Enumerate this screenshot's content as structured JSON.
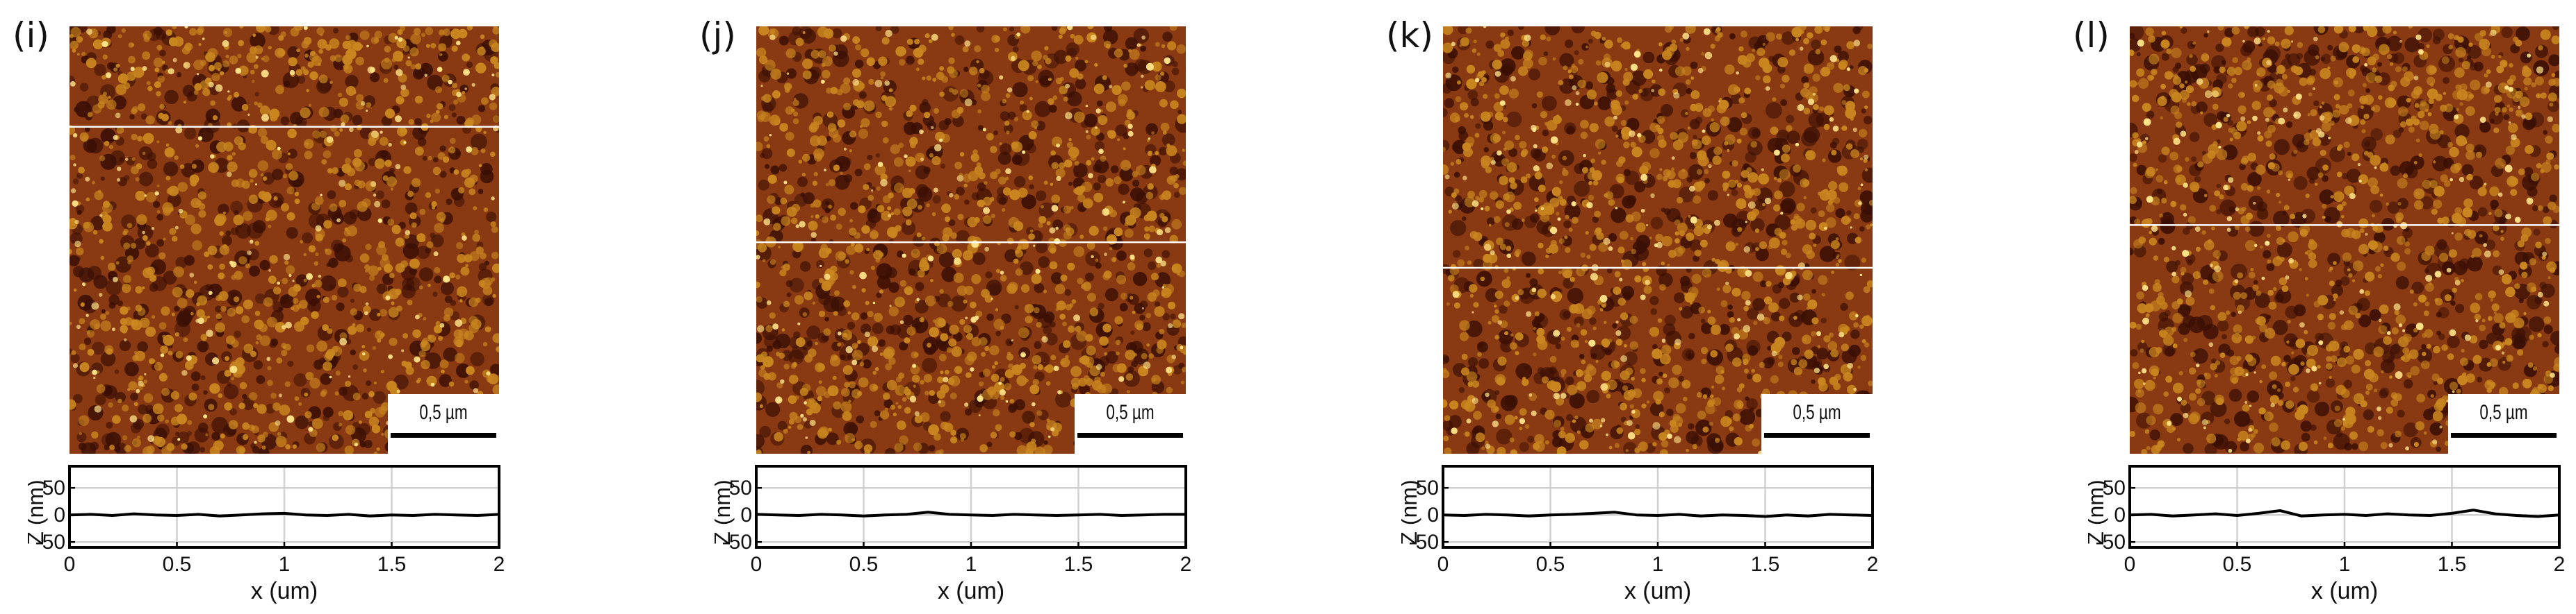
{
  "panels": [
    {
      "label": "(i)",
      "scale_bar": "0,5 µm",
      "cut_line_fraction": 0.235,
      "seed": 11
    },
    {
      "label": "(j)",
      "scale_bar": "0,5 µm",
      "cut_line_fraction": 0.505,
      "seed": 23
    },
    {
      "label": "(k)",
      "scale_bar": "0,5 µm",
      "cut_line_fraction": 0.565,
      "seed": 37
    },
    {
      "label": "(l)",
      "scale_bar": "0,5 µm",
      "cut_line_fraction": 0.465,
      "seed": 51
    }
  ],
  "colors": {
    "afm_dark": "#3a0f05",
    "afm_mid": "#8a3a12",
    "afm_light": "#c9861f",
    "afm_bright": "#ffe58a",
    "profile_line": "#000000",
    "grid": "#d0d0d0"
  },
  "chart_data": [
    {
      "type": "line",
      "title": "(i)",
      "xlabel": "x (um)",
      "ylabel": "Z (nm)",
      "xlim": [
        0,
        2
      ],
      "ylim": [
        -60,
        90
      ],
      "xticks": [
        0,
        0.5,
        1,
        1.5,
        2
      ],
      "xtick_labels": [
        "0",
        "0.5",
        "1",
        "1.5",
        "2"
      ],
      "yticks": [
        -50,
        0,
        50
      ],
      "ytick_labels": [
        "-50",
        "0",
        "50"
      ],
      "grid": true,
      "series": [
        {
          "name": "Z",
          "x": [
            0,
            0.1,
            0.2,
            0.3,
            0.4,
            0.5,
            0.6,
            0.7,
            0.8,
            0.9,
            1.0,
            1.1,
            1.2,
            1.3,
            1.4,
            1.5,
            1.6,
            1.7,
            1.8,
            1.9,
            2.0
          ],
          "y": [
            0,
            1,
            -1,
            2,
            0,
            -1,
            1,
            -2,
            0,
            2,
            3,
            0,
            -1,
            1,
            -2,
            0,
            -1,
            1,
            0,
            -1,
            1
          ]
        }
      ]
    },
    {
      "type": "line",
      "title": "(j)",
      "xlabel": "x (um)",
      "ylabel": "Z (nm)",
      "xlim": [
        0,
        2
      ],
      "ylim": [
        -60,
        90
      ],
      "xticks": [
        0,
        0.5,
        1,
        1.5,
        2
      ],
      "xtick_labels": [
        "0",
        "0.5",
        "1",
        "1.5",
        "2"
      ],
      "yticks": [
        -50,
        0,
        50
      ],
      "ytick_labels": [
        "-50",
        "0",
        "50"
      ],
      "grid": true,
      "series": [
        {
          "name": "Z",
          "x": [
            0,
            0.1,
            0.2,
            0.3,
            0.4,
            0.5,
            0.6,
            0.7,
            0.8,
            0.9,
            1.0,
            1.1,
            1.2,
            1.3,
            1.4,
            1.5,
            1.6,
            1.7,
            1.8,
            1.9,
            2.0
          ],
          "y": [
            1,
            0,
            -1,
            1,
            0,
            -2,
            0,
            1,
            5,
            1,
            0,
            -1,
            1,
            0,
            -1,
            0,
            1,
            -1,
            0,
            1,
            1
          ]
        }
      ]
    },
    {
      "type": "line",
      "title": "(k)",
      "xlabel": "x (um)",
      "ylabel": "Z (nm)",
      "xlim": [
        0,
        2
      ],
      "ylim": [
        -60,
        90
      ],
      "xticks": [
        0,
        0.5,
        1,
        1.5,
        2
      ],
      "xtick_labels": [
        "0",
        "0.5",
        "1",
        "1.5",
        "2"
      ],
      "yticks": [
        -50,
        0,
        50
      ],
      "ytick_labels": [
        "-50",
        "0",
        "50"
      ],
      "grid": true,
      "series": [
        {
          "name": "Z",
          "x": [
            0,
            0.1,
            0.2,
            0.3,
            0.4,
            0.5,
            0.6,
            0.7,
            0.8,
            0.9,
            1.0,
            1.1,
            1.2,
            1.3,
            1.4,
            1.5,
            1.6,
            1.7,
            1.8,
            1.9,
            2.0
          ],
          "y": [
            0,
            -1,
            1,
            0,
            -2,
            0,
            1,
            3,
            5,
            0,
            -1,
            1,
            -2,
            0,
            -1,
            -3,
            0,
            -2,
            1,
            0,
            -1
          ]
        }
      ]
    },
    {
      "type": "line",
      "title": "(l)",
      "xlabel": "x (um)",
      "ylabel": "Z (nm)",
      "xlim": [
        0,
        2
      ],
      "ylim": [
        -60,
        90
      ],
      "xticks": [
        0,
        0.5,
        1,
        1.5,
        2
      ],
      "xtick_labels": [
        "0",
        "0.5",
        "1",
        "1.5",
        "2"
      ],
      "yticks": [
        -50,
        0,
        50
      ],
      "ytick_labels": [
        "-50",
        "0",
        "50"
      ],
      "grid": true,
      "series": [
        {
          "name": "Z",
          "x": [
            0,
            0.1,
            0.2,
            0.3,
            0.4,
            0.5,
            0.6,
            0.7,
            0.8,
            0.9,
            1.0,
            1.1,
            1.2,
            1.3,
            1.4,
            1.5,
            1.6,
            1.7,
            1.8,
            1.9,
            2.0
          ],
          "y": [
            0,
            1,
            -2,
            0,
            2,
            -1,
            3,
            8,
            -2,
            0,
            1,
            -1,
            2,
            0,
            -1,
            3,
            9,
            2,
            -1,
            -3,
            0
          ]
        }
      ]
    }
  ]
}
